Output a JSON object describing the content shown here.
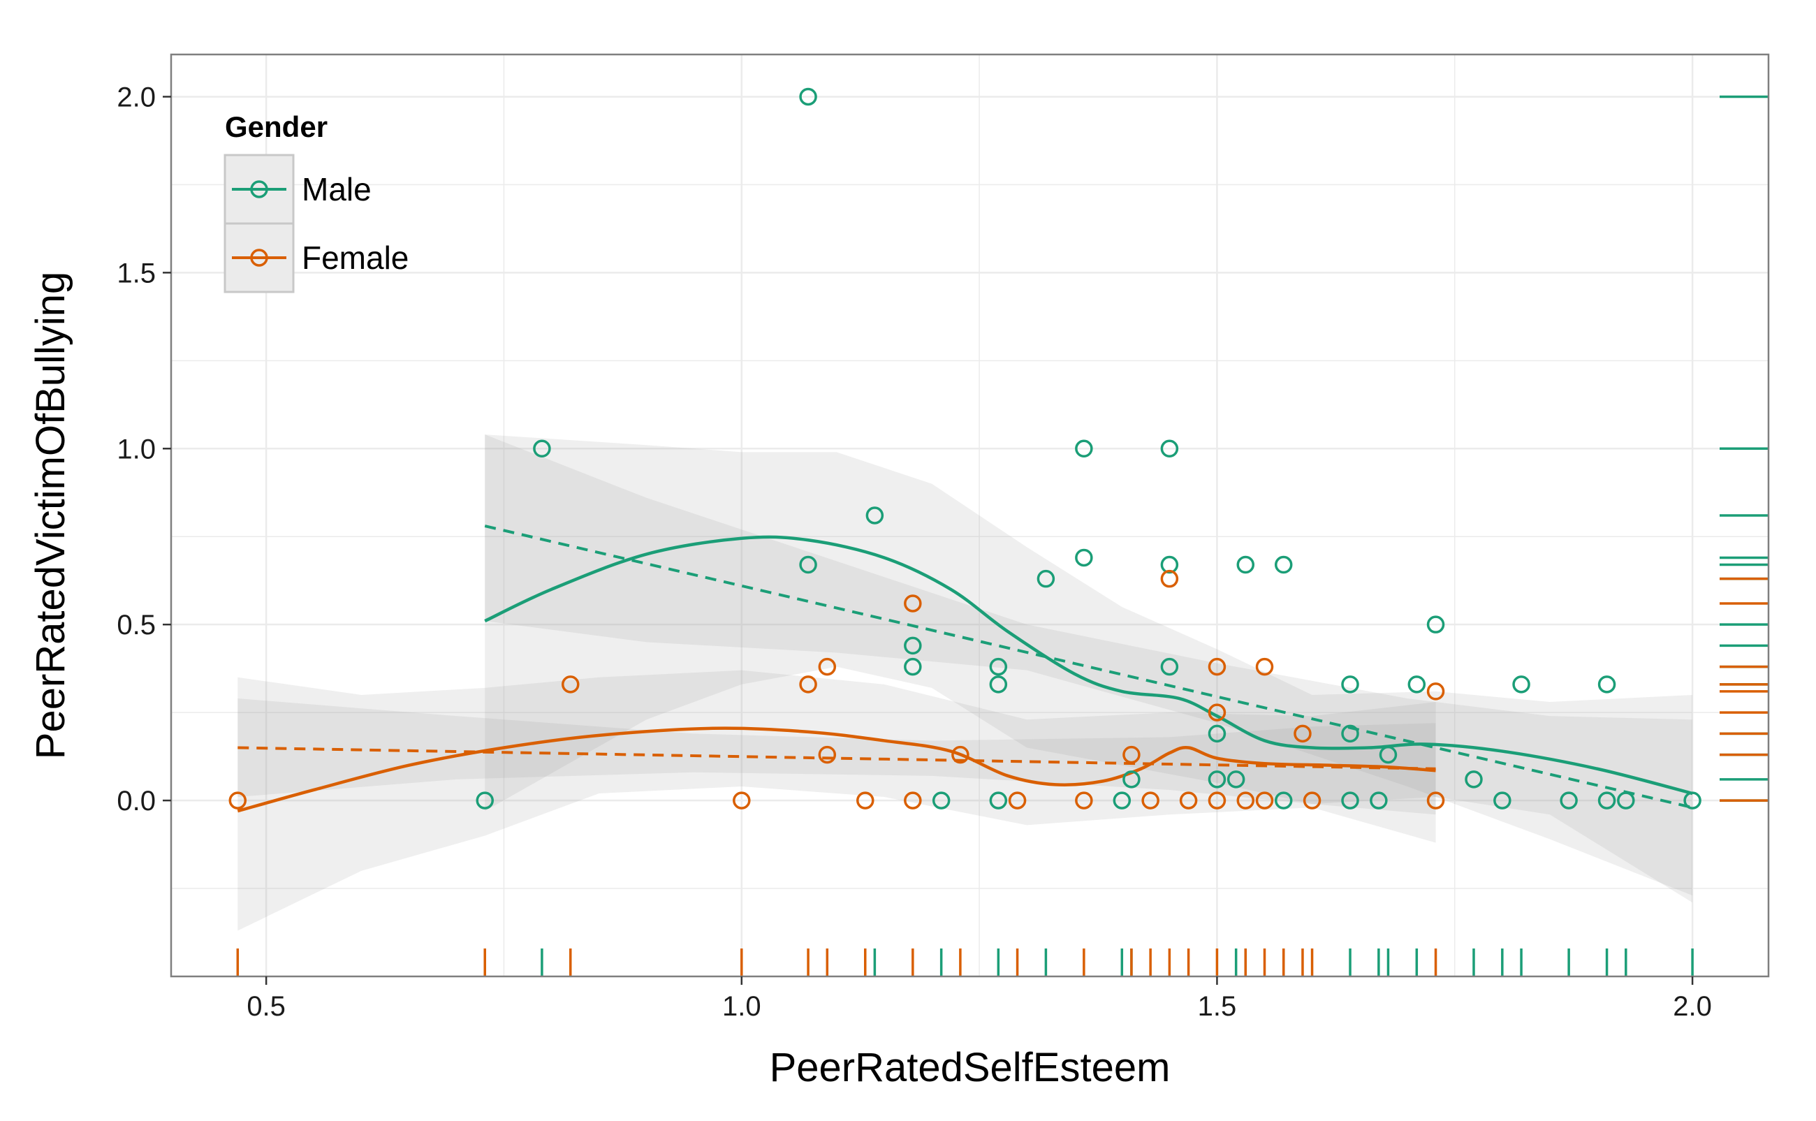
{
  "chart_data": {
    "type": "scatter",
    "title": "",
    "xlabel": "PeerRatedSelfEsteem",
    "ylabel": "PeerRatedVictimOfBullying",
    "xlim": [
      0.4,
      2.08
    ],
    "ylim": [
      -0.5,
      2.12
    ],
    "x_ticks": [
      0.5,
      1.0,
      1.5,
      2.0
    ],
    "x_tick_labels": [
      "0.5",
      "1.0",
      "1.5",
      "2.0"
    ],
    "y_ticks": [
      0.0,
      0.5,
      1.0,
      1.5,
      2.0
    ],
    "y_tick_labels": [
      "0.0",
      "0.5",
      "1.0",
      "1.5",
      "2.0"
    ],
    "grid": true,
    "legend": {
      "title": "Gender",
      "position": "top-left",
      "entries": [
        "Male",
        "Female"
      ]
    },
    "colors": {
      "Male": "#1b9e77",
      "Female": "#d95f02",
      "band": "#999999",
      "grid": "#ebebeb",
      "frame": "#7f7f7f",
      "legend_box": "#ebebeb"
    },
    "series": [
      {
        "name": "Male",
        "points": [
          [
            0.73,
            0.0
          ],
          [
            0.79,
            1.0
          ],
          [
            1.07,
            2.0
          ],
          [
            1.07,
            0.67
          ],
          [
            1.14,
            0.81
          ],
          [
            1.18,
            0.44
          ],
          [
            1.18,
            0.38
          ],
          [
            1.21,
            0.0
          ],
          [
            1.27,
            0.38
          ],
          [
            1.27,
            0.33
          ],
          [
            1.27,
            0.0
          ],
          [
            1.32,
            0.63
          ],
          [
            1.36,
            1.0
          ],
          [
            1.36,
            0.69
          ],
          [
            1.4,
            0.0
          ],
          [
            1.41,
            0.06
          ],
          [
            1.45,
            1.0
          ],
          [
            1.45,
            0.67
          ],
          [
            1.45,
            0.38
          ],
          [
            1.5,
            0.19
          ],
          [
            1.5,
            0.06
          ],
          [
            1.52,
            0.06
          ],
          [
            1.53,
            0.67
          ],
          [
            1.57,
            0.67
          ],
          [
            1.57,
            0.0
          ],
          [
            1.64,
            0.33
          ],
          [
            1.64,
            0.19
          ],
          [
            1.64,
            0.0
          ],
          [
            1.67,
            0.0
          ],
          [
            1.68,
            0.13
          ],
          [
            1.71,
            0.33
          ],
          [
            1.73,
            0.5
          ],
          [
            1.77,
            0.06
          ],
          [
            1.8,
            0.0
          ],
          [
            1.82,
            0.33
          ],
          [
            1.87,
            0.0
          ],
          [
            1.91,
            0.33
          ],
          [
            1.91,
            0.0
          ],
          [
            1.93,
            0.0
          ],
          [
            2.0,
            0.0
          ]
        ],
        "rug_x": [
          0.79,
          1.14,
          1.21,
          1.27,
          1.32,
          1.4,
          1.41,
          1.52,
          1.53,
          1.57,
          1.64,
          1.67,
          1.68,
          1.71,
          1.77,
          1.8,
          1.82,
          1.87,
          1.91,
          1.93,
          2.0
        ],
        "rug_y": [
          0.0,
          0.06,
          0.13,
          0.19,
          0.33,
          0.38,
          0.44,
          0.5,
          0.63,
          0.67,
          0.69,
          0.81,
          1.0,
          2.0
        ],
        "linear_fit": [
          [
            0.73,
            0.78
          ],
          [
            2.0,
            -0.02
          ]
        ],
        "smooth_fit": [
          [
            0.73,
            0.51
          ],
          [
            0.8,
            0.6
          ],
          [
            0.9,
            0.7
          ],
          [
            1.0,
            0.745
          ],
          [
            1.07,
            0.74
          ],
          [
            1.15,
            0.69
          ],
          [
            1.22,
            0.6
          ],
          [
            1.28,
            0.48
          ],
          [
            1.35,
            0.36
          ],
          [
            1.4,
            0.31
          ],
          [
            1.46,
            0.29
          ],
          [
            1.5,
            0.24
          ],
          [
            1.55,
            0.17
          ],
          [
            1.6,
            0.15
          ],
          [
            1.66,
            0.15
          ],
          [
            1.72,
            0.16
          ],
          [
            1.8,
            0.14
          ],
          [
            1.9,
            0.09
          ],
          [
            2.0,
            0.02
          ]
        ],
        "linear_band": [
          [
            0.73,
            0.51,
            1.04
          ],
          [
            0.9,
            0.45,
            0.86
          ],
          [
            1.1,
            0.42,
            0.68
          ],
          [
            1.3,
            0.37,
            0.5
          ],
          [
            1.5,
            0.22,
            0.39
          ],
          [
            1.7,
            0.04,
            0.29
          ],
          [
            1.85,
            -0.11,
            0.24
          ],
          [
            2.0,
            -0.27,
            0.23
          ]
        ],
        "smooth_band": [
          [
            0.73,
            -0.03,
            1.04
          ],
          [
            0.9,
            0.23,
            1.01
          ],
          [
            1.0,
            0.33,
            0.99
          ],
          [
            1.1,
            0.38,
            0.99
          ],
          [
            1.2,
            0.32,
            0.9
          ],
          [
            1.3,
            0.15,
            0.72
          ],
          [
            1.4,
            0.1,
            0.55
          ],
          [
            1.5,
            0.05,
            0.43
          ],
          [
            1.6,
            -0.01,
            0.3
          ],
          [
            1.73,
            0.01,
            0.31
          ],
          [
            1.85,
            -0.04,
            0.28
          ],
          [
            2.0,
            -0.29,
            0.3
          ]
        ]
      },
      {
        "name": "Female",
        "points": [
          [
            0.47,
            0.0
          ],
          [
            0.82,
            0.33
          ],
          [
            1.0,
            0.0
          ],
          [
            1.07,
            0.33
          ],
          [
            1.09,
            0.38
          ],
          [
            1.09,
            0.13
          ],
          [
            1.13,
            0.0
          ],
          [
            1.18,
            0.56
          ],
          [
            1.18,
            0.0
          ],
          [
            1.23,
            0.13
          ],
          [
            1.29,
            0.0
          ],
          [
            1.36,
            0.0
          ],
          [
            1.41,
            0.13
          ],
          [
            1.43,
            0.0
          ],
          [
            1.45,
            0.63
          ],
          [
            1.47,
            0.0
          ],
          [
            1.5,
            0.38
          ],
          [
            1.5,
            0.25
          ],
          [
            1.5,
            0.0
          ],
          [
            1.53,
            0.0
          ],
          [
            1.55,
            0.38
          ],
          [
            1.55,
            0.0
          ],
          [
            1.59,
            0.19
          ],
          [
            1.6,
            0.0
          ],
          [
            1.73,
            0.31
          ],
          [
            1.73,
            0.0
          ]
        ],
        "rug_x": [
          0.47,
          0.73,
          0.82,
          1.0,
          1.07,
          1.09,
          1.13,
          1.18,
          1.23,
          1.29,
          1.36,
          1.41,
          1.43,
          1.45,
          1.47,
          1.5,
          1.53,
          1.55,
          1.57,
          1.59,
          1.6,
          1.73
        ],
        "rug_y": [
          0.0,
          0.13,
          0.19,
          0.25,
          0.31,
          0.33,
          0.38,
          0.56,
          0.63
        ],
        "linear_fit": [
          [
            0.47,
            0.15
          ],
          [
            1.73,
            0.09
          ]
        ],
        "smooth_fit": [
          [
            0.47,
            -0.03
          ],
          [
            0.55,
            0.03
          ],
          [
            0.65,
            0.1
          ],
          [
            0.75,
            0.15
          ],
          [
            0.85,
            0.185
          ],
          [
            0.97,
            0.205
          ],
          [
            1.07,
            0.195
          ],
          [
            1.15,
            0.17
          ],
          [
            1.22,
            0.14
          ],
          [
            1.28,
            0.07
          ],
          [
            1.33,
            0.045
          ],
          [
            1.38,
            0.055
          ],
          [
            1.42,
            0.09
          ],
          [
            1.45,
            0.135
          ],
          [
            1.47,
            0.15
          ],
          [
            1.5,
            0.12
          ],
          [
            1.55,
            0.105
          ],
          [
            1.62,
            0.1
          ],
          [
            1.68,
            0.095
          ],
          [
            1.73,
            0.085
          ]
        ],
        "linear_band": [
          [
            0.47,
            0.01,
            0.29
          ],
          [
            0.7,
            0.06,
            0.24
          ],
          [
            0.95,
            0.08,
            0.19
          ],
          [
            1.2,
            0.07,
            0.17
          ],
          [
            1.45,
            0.03,
            0.18
          ],
          [
            1.6,
            -0.01,
            0.21
          ],
          [
            1.73,
            -0.04,
            0.22
          ]
        ],
        "smooth_band": [
          [
            0.47,
            -0.37,
            0.35
          ],
          [
            0.6,
            -0.2,
            0.3
          ],
          [
            0.73,
            -0.1,
            0.32
          ],
          [
            0.85,
            0.02,
            0.35
          ],
          [
            1.0,
            0.04,
            0.37
          ],
          [
            1.15,
            0.01,
            0.33
          ],
          [
            1.3,
            -0.07,
            0.23
          ],
          [
            1.45,
            -0.04,
            0.25
          ],
          [
            1.6,
            -0.02,
            0.24
          ],
          [
            1.73,
            -0.12,
            0.28
          ]
        ]
      }
    ]
  }
}
